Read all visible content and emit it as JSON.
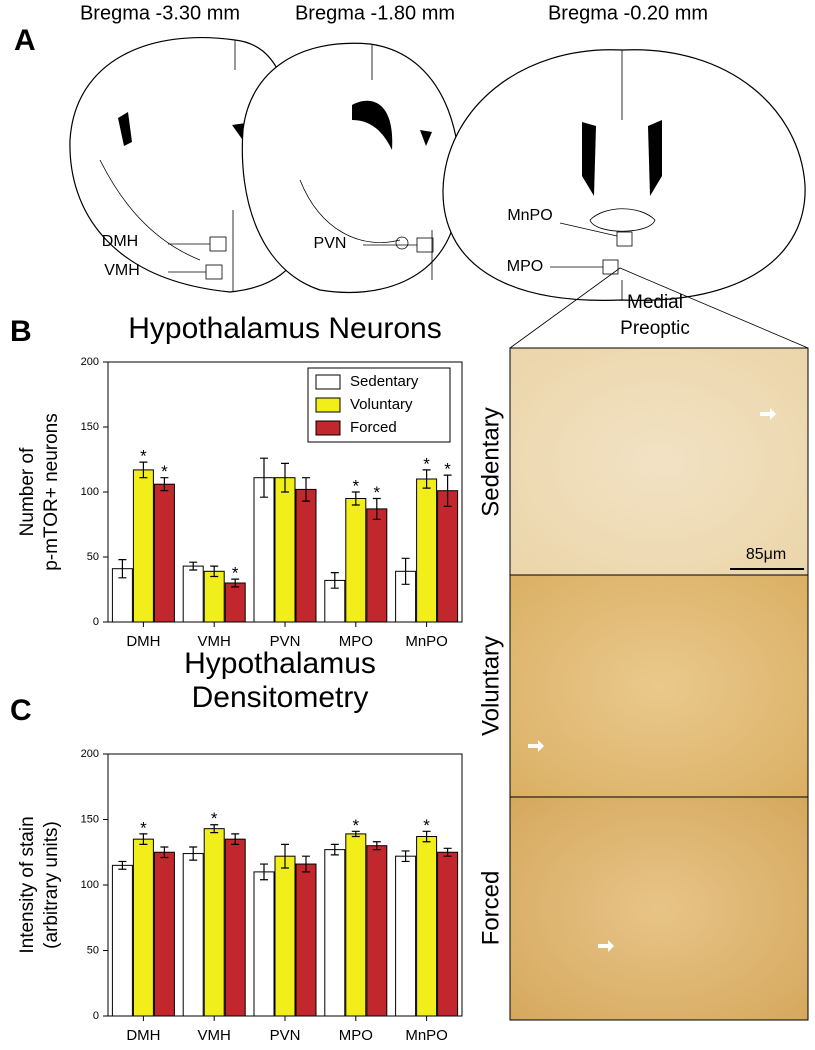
{
  "panels": {
    "a": "A",
    "b": "B",
    "c": "C"
  },
  "sections": {
    "labels": [
      "Bregma -3.30 mm",
      "Bregma -1.80 mm",
      "Bregma -0.20 mm"
    ],
    "regions": [
      "DMH",
      "VMH",
      "PVN",
      "MnPO",
      "MPO"
    ]
  },
  "micrographs": {
    "region": [
      "Medial",
      "Preoptic"
    ],
    "rows": [
      "Sedentary",
      "Voluntary",
      "Forced"
    ],
    "scale": "85μm"
  },
  "chart_data": [
    {
      "type": "bar",
      "title": [
        "Hypothalamus Neurons"
      ],
      "ylabel": [
        "Number of",
        "p-mTOR+ neurons"
      ],
      "categories": [
        "DMH",
        "VMH",
        "PVN",
        "MPO",
        "MnPO"
      ],
      "ylim": [
        0,
        200
      ],
      "yticks": [
        0,
        50,
        100,
        150,
        200
      ],
      "legend": "upper right",
      "series": [
        {
          "name": "Sedentary",
          "color": "#ffffff",
          "values": [
            41,
            43,
            111,
            32,
            39
          ],
          "errors": [
            7,
            3,
            15,
            6,
            10
          ],
          "markers": [
            null,
            null,
            null,
            null,
            null
          ]
        },
        {
          "name": "Voluntary",
          "color": "#f2ee1a",
          "values": [
            117,
            39,
            111,
            95,
            110
          ],
          "errors": [
            6,
            4,
            11,
            5,
            7
          ],
          "markers": [
            "*",
            null,
            null,
            "*",
            "*"
          ]
        },
        {
          "name": "Forced",
          "color": "#c1272d",
          "values": [
            106,
            30,
            102,
            87,
            101
          ],
          "errors": [
            5,
            3,
            9,
            8,
            12
          ],
          "markers": [
            "*",
            "*",
            null,
            "*",
            "*"
          ]
        }
      ]
    },
    {
      "type": "bar",
      "title": [
        "Hypothalamus",
        "Densitometry"
      ],
      "ylabel": [
        "Intensity of stain",
        "(arbitrary units)"
      ],
      "categories": [
        "DMH",
        "VMH",
        "PVN",
        "MPO",
        "MnPO"
      ],
      "ylim": [
        0,
        200
      ],
      "yticks": [
        0,
        50,
        100,
        150,
        200
      ],
      "legend": "none",
      "series": [
        {
          "color": "#ffffff",
          "values": [
            115,
            124,
            110,
            127,
            122
          ],
          "errors": [
            3,
            5,
            6,
            4,
            4
          ],
          "markers": [
            null,
            null,
            null,
            null,
            null
          ]
        },
        {
          "color": "#f2ee1a",
          "values": [
            135,
            143,
            122,
            139,
            137
          ],
          "errors": [
            4,
            3,
            9,
            2,
            4
          ],
          "markers": [
            "*",
            "*",
            null,
            "*",
            "*"
          ]
        },
        {
          "color": "#c1272d",
          "values": [
            125,
            135,
            116,
            130,
            125
          ],
          "errors": [
            4,
            4,
            6,
            3,
            3
          ],
          "markers": [
            null,
            null,
            null,
            null,
            null
          ]
        }
      ]
    }
  ]
}
